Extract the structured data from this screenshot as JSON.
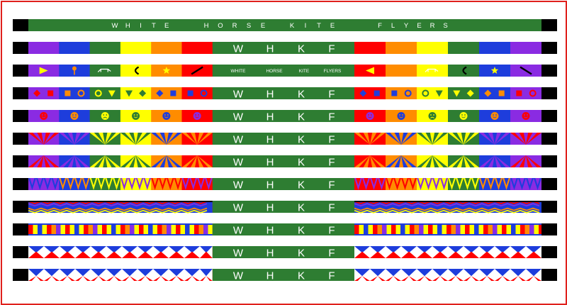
{
  "header_title": "WHITE HORSE KITE FLYERS",
  "header_letters": [
    "W",
    "H",
    "I",
    "T",
    "E",
    "H",
    "O",
    "R",
    "S",
    "E",
    "K",
    "I",
    "T",
    "E",
    "F",
    "L",
    "Y",
    "E",
    "R",
    "S"
  ],
  "band_letters": [
    "W",
    "H",
    "K",
    "F"
  ],
  "small_words": [
    "WHITE",
    "HORSE",
    "KITE",
    "FLYERS"
  ],
  "colors": {
    "green": "#2e7d32",
    "black": "#000000",
    "purple": "#8a2be2",
    "blue": "#1e3ddc",
    "yellow": "#ffff00",
    "orange": "#ff8c00",
    "red": "#ff0000",
    "white": "#ffffff",
    "frame": "#e0201c"
  },
  "strips": [
    {
      "id": "title-strip",
      "pattern": "title"
    },
    {
      "id": "rainbow-plain",
      "pattern": "plain",
      "label": "letters"
    },
    {
      "id": "rainbow-icons",
      "pattern": "icons",
      "label": "words"
    },
    {
      "id": "rainbow-shapes",
      "pattern": "shapes",
      "label": "letters"
    },
    {
      "id": "rainbow-faces",
      "pattern": "faces",
      "label": "letters"
    },
    {
      "id": "rainbow-rays-a",
      "pattern": "rays",
      "label": "letters"
    },
    {
      "id": "rainbow-rays-b",
      "pattern": "rays2",
      "label": "letters"
    },
    {
      "id": "rainbow-zigzag",
      "pattern": "zigzag",
      "label": "letters"
    },
    {
      "id": "rainbow-chevron",
      "pattern": "chevron",
      "label": "letters"
    },
    {
      "id": "rainbow-bars",
      "pattern": "bars",
      "label": "letters"
    },
    {
      "id": "rwb-triangles-a",
      "pattern": "rwb1",
      "label": "letters"
    },
    {
      "id": "rwb-triangles-b",
      "pattern": "rwb2",
      "label": "letters"
    }
  ],
  "icons": {
    "shapes": [
      "diamond",
      "square",
      "diamond",
      "hexagon",
      "star",
      "bar",
      "ring",
      "triangle-down",
      "diamond"
    ],
    "faces": [
      "smiley-face",
      "smiley-face",
      "frown-face",
      "smiley-face",
      "smiley-face"
    ],
    "kite_icons": [
      "arrow-icon",
      "lollipop-icon",
      "horse-icon",
      "horse-icon",
      "fan-icon",
      "star-icon",
      "bar-icon"
    ]
  }
}
